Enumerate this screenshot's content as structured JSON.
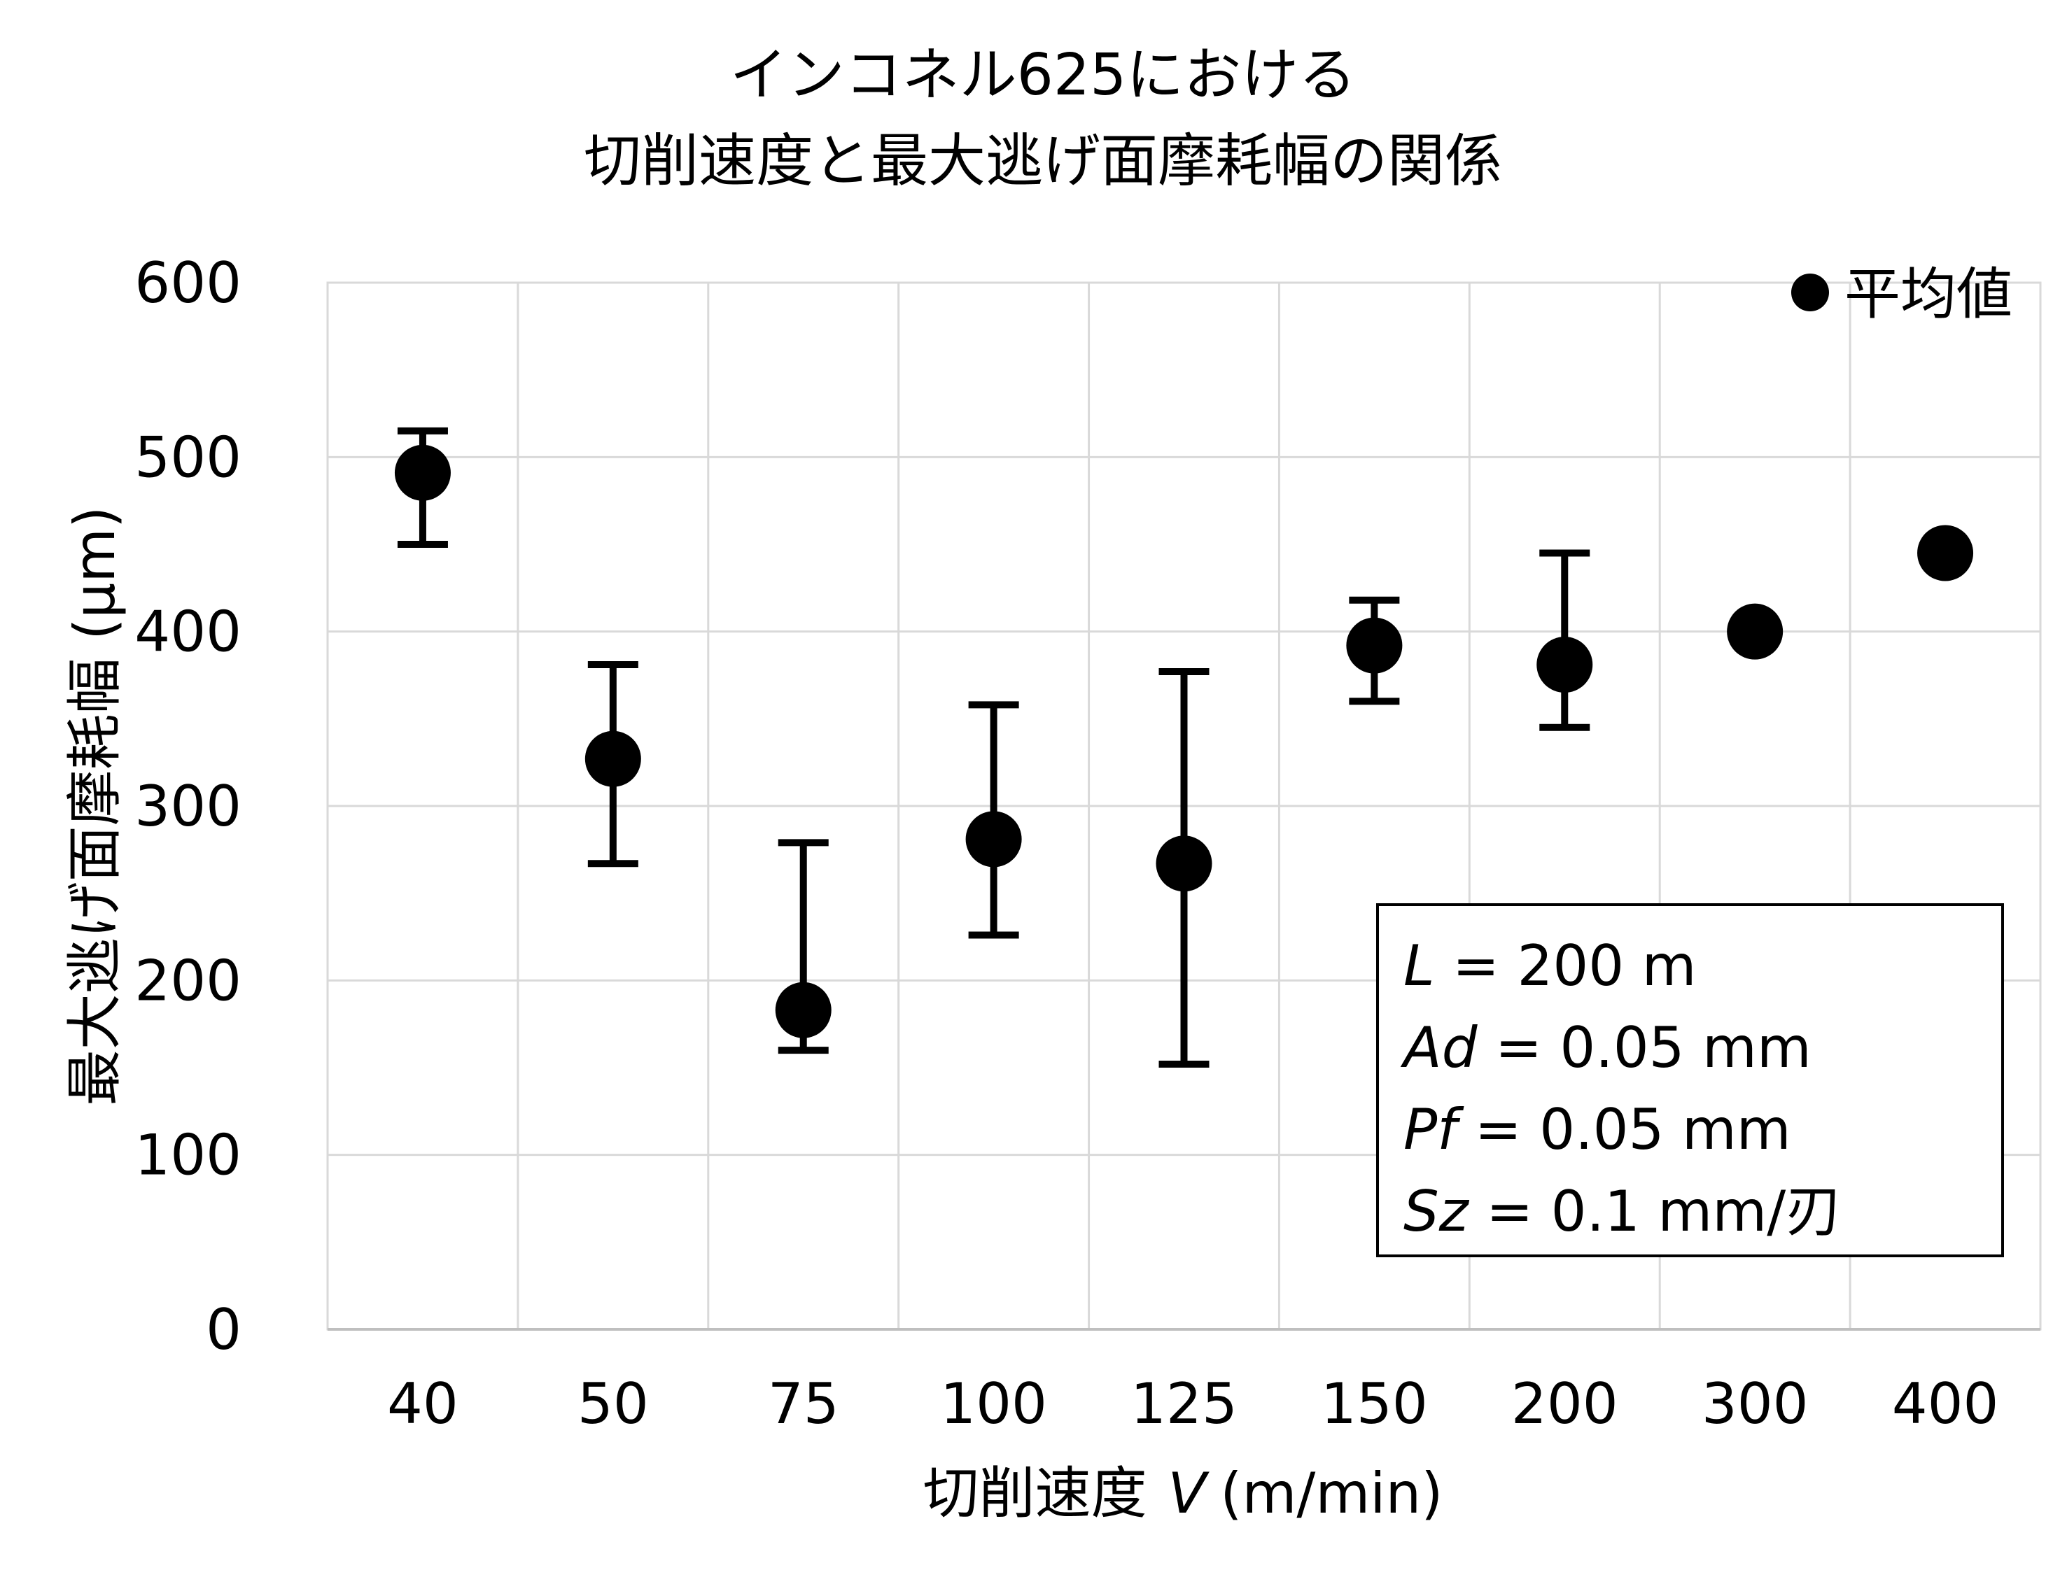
{
  "chart_data": {
    "type": "scatter",
    "title_line1": "インコネル625における",
    "title_line2": "切削速度と最大逃げ面摩耗幅の関係",
    "xlabel_prefix": "切削速度",
    "xlabel_var": "V",
    "xlabel_unit": "(m/min)",
    "ylabel": "最大逃げ面摩耗幅 (μm)",
    "ylim": [
      0,
      600
    ],
    "yticks": [
      "0",
      "100",
      "200",
      "300",
      "400",
      "500",
      "600"
    ],
    "categories": [
      "40",
      "50",
      "75",
      "100",
      "125",
      "150",
      "200",
      "300",
      "400"
    ],
    "legend_label": "平均値",
    "legend_position": "top-right",
    "grid": true,
    "series": [
      {
        "name": "平均値",
        "values": [
          491,
          327,
          183,
          281,
          267,
          392,
          381,
          400,
          445
        ],
        "error_high": [
          515,
          381,
          279,
          358,
          377,
          418,
          445,
          null,
          null
        ],
        "error_low": [
          450,
          267,
          160,
          226,
          152,
          360,
          345,
          null,
          null
        ]
      }
    ],
    "annotation": {
      "lines": [
        {
          "var": "L",
          "value": "= 200 m"
        },
        {
          "var": "Ad",
          "value": "= 0.05 mm"
        },
        {
          "var": "Pf",
          "value": "= 0.05 mm"
        },
        {
          "var": "Sz",
          "value": "= 0.1 mm/刃"
        }
      ]
    }
  }
}
